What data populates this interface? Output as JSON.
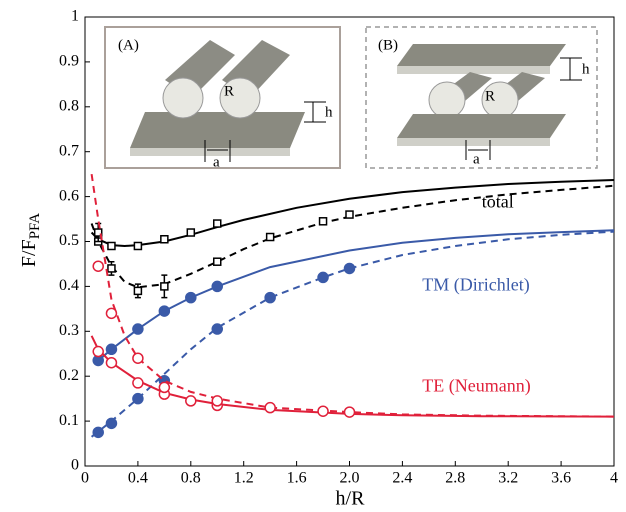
{
  "chart_data": {
    "type": "line",
    "xlabel": "h/R",
    "ylabel": "F/F",
    "ylabel_sub": "PFA",
    "xlim": [
      0,
      4
    ],
    "ylim": [
      0,
      1
    ],
    "xticks": [
      0,
      0.4,
      0.8,
      1.2,
      1.6,
      {
        "value": 2,
        "label": "2.0"
      },
      2.4,
      2.8,
      3.2,
      3.6,
      4
    ],
    "yticks": [
      0,
      0.1,
      0.2,
      0.3,
      0.4,
      0.5,
      0.6,
      0.7,
      0.8,
      0.9,
      1
    ],
    "annotations": [
      {
        "text": "total",
        "x": 3.0,
        "y": 0.585,
        "color": "#000000"
      },
      {
        "text": "TM (Dirichlet)",
        "x": 2.55,
        "y": 0.4,
        "color": "#3a5aa8"
      },
      {
        "text": "TE (Neumann)",
        "x": 2.55,
        "y": 0.175,
        "color": "#e0203a"
      }
    ],
    "insets": [
      {
        "label": "(A)",
        "radius": "R",
        "gap": "h",
        "offset": "a"
      },
      {
        "label": "(B)",
        "radius": "R",
        "gap": "h",
        "offset": "a"
      }
    ],
    "series": [
      {
        "color": "#000000",
        "style": "solid",
        "marker": "none",
        "x": [
          0.05,
          0.1,
          0.2,
          0.3,
          0.4,
          0.6,
          0.8,
          1.0,
          1.2,
          1.6,
          2.0,
          2.4,
          2.8,
          3.2,
          3.6,
          4.0
        ],
        "values": [
          0.52,
          0.505,
          0.492,
          0.49,
          0.492,
          0.5,
          0.515,
          0.532,
          0.548,
          0.575,
          0.595,
          0.61,
          0.62,
          0.628,
          0.633,
          0.637
        ]
      },
      {
        "color": "#000000",
        "style": "dashed",
        "marker": "none",
        "x": [
          0.05,
          0.1,
          0.2,
          0.3,
          0.4,
          0.6,
          0.8,
          1.0,
          1.2,
          1.4,
          1.8,
          2.0,
          2.4,
          2.8,
          3.2,
          3.6,
          4.0
        ],
        "values": [
          0.54,
          0.5,
          0.445,
          0.41,
          0.398,
          0.405,
          0.428,
          0.455,
          0.483,
          0.507,
          0.542,
          0.555,
          0.575,
          0.592,
          0.605,
          0.615,
          0.624
        ]
      },
      {
        "color": "#000000",
        "style": "none",
        "marker": "square",
        "x": [
          0.1,
          0.2,
          0.4,
          0.6,
          0.8,
          1.0
        ],
        "values": [
          0.5,
          0.49,
          0.49,
          0.505,
          0.52,
          0.54
        ]
      },
      {
        "color": "#000000",
        "style": "none",
        "marker": "square",
        "x": [
          0.1,
          0.2,
          0.4,
          0.6,
          1.0,
          1.4,
          1.8,
          2.0
        ],
        "values": [
          0.52,
          0.44,
          0.39,
          0.4,
          0.455,
          0.51,
          0.545,
          0.56
        ],
        "errors": [
          0.02,
          0.015,
          0.015,
          0.025,
          null,
          null,
          null,
          null
        ]
      },
      {
        "color": "#3a5aa8",
        "style": "solid",
        "marker": "none",
        "x": [
          0.08,
          0.2,
          0.4,
          0.6,
          0.8,
          1.0,
          1.4,
          2.0,
          2.4,
          2.8,
          3.2,
          3.6,
          4.0
        ],
        "values": [
          0.23,
          0.26,
          0.305,
          0.345,
          0.375,
          0.4,
          0.443,
          0.48,
          0.497,
          0.508,
          0.516,
          0.521,
          0.525
        ]
      },
      {
        "color": "#3a5aa8",
        "style": "none",
        "marker": "circle",
        "x": [
          0.1,
          0.2,
          0.4,
          0.6,
          0.8,
          1.0
        ],
        "values": [
          0.235,
          0.26,
          0.305,
          0.345,
          0.375,
          0.4
        ]
      },
      {
        "color": "#3a5aa8",
        "style": "dashed",
        "marker": "none",
        "x": [
          0.05,
          0.2,
          0.4,
          0.6,
          0.8,
          1.0,
          1.4,
          1.8,
          2.0,
          2.4,
          2.8,
          3.2,
          3.6,
          4.0
        ],
        "values": [
          0.065,
          0.1,
          0.15,
          0.205,
          0.26,
          0.308,
          0.375,
          0.42,
          0.44,
          0.47,
          0.49,
          0.505,
          0.515,
          0.522
        ]
      },
      {
        "color": "#3a5aa8",
        "style": "none",
        "marker": "circle",
        "x": [
          0.1,
          0.2,
          0.4,
          0.6,
          1.0,
          1.4,
          1.8,
          2.0
        ],
        "values": [
          0.075,
          0.095,
          0.15,
          0.19,
          0.305,
          0.375,
          0.42,
          0.44
        ]
      },
      {
        "color": "#e0203a",
        "style": "solid",
        "marker": "none",
        "x": [
          0.05,
          0.1,
          0.2,
          0.4,
          0.6,
          0.8,
          1.0,
          1.4,
          2.0,
          2.4,
          3.0,
          4.0
        ],
        "values": [
          0.29,
          0.26,
          0.23,
          0.19,
          0.163,
          0.148,
          0.138,
          0.125,
          0.116,
          0.113,
          0.111,
          0.11
        ]
      },
      {
        "color": "#e0203a",
        "style": "none",
        "marker": "open-circle",
        "x": [
          0.1,
          0.2,
          0.4,
          0.6,
          0.8,
          1.0
        ],
        "values": [
          0.255,
          0.23,
          0.185,
          0.16,
          0.145,
          0.135
        ]
      },
      {
        "color": "#e0203a",
        "style": "dashed",
        "marker": "none",
        "x": [
          0.05,
          0.1,
          0.2,
          0.3,
          0.4,
          0.6,
          0.8,
          1.0,
          1.4,
          2.0,
          2.4,
          3.0,
          4.0
        ],
        "values": [
          0.65,
          0.55,
          0.37,
          0.29,
          0.24,
          0.19,
          0.165,
          0.15,
          0.13,
          0.12,
          0.115,
          0.112,
          0.11
        ]
      },
      {
        "color": "#e0203a",
        "style": "none",
        "marker": "open-circle",
        "x": [
          0.1,
          0.2,
          0.4,
          0.6,
          1.0,
          1.4,
          1.8,
          2.0
        ],
        "values": [
          0.445,
          0.34,
          0.24,
          0.175,
          0.145,
          0.13,
          0.122,
          0.12
        ]
      }
    ]
  }
}
